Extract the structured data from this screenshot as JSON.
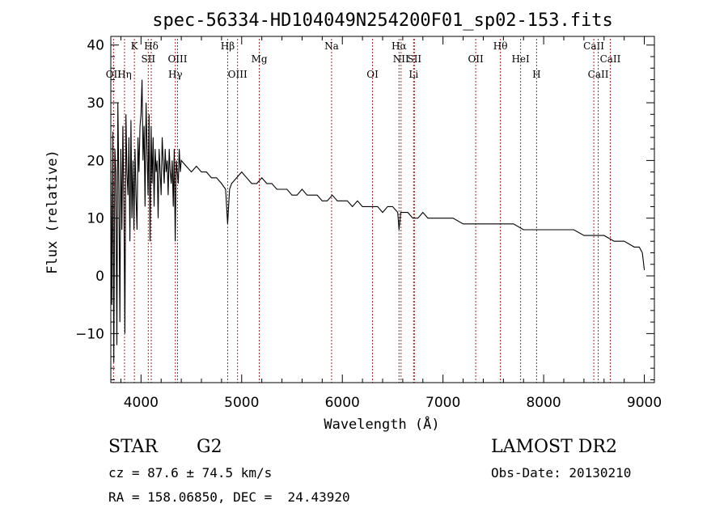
{
  "chart_data": {
    "type": "line",
    "title": "spec-56334-HD104049N254200F01_sp02-153.fits",
    "xlabel": "Wavelength (Å)",
    "ylabel": "Flux (relative)",
    "xlim": [
      3700,
      9100
    ],
    "ylim": [
      -18.5,
      41.5
    ],
    "xticks": [
      4000,
      5000,
      6000,
      7000,
      8000,
      9000
    ],
    "yticks": [
      -10,
      0,
      10,
      20,
      30,
      40
    ],
    "x_minor_step": 200,
    "y_minor_step": 2,
    "grid": false,
    "series": [
      {
        "x": [
          3700,
          3710,
          3720,
          3730,
          3740,
          3750,
          3760,
          3770,
          3780,
          3790,
          3800,
          3810,
          3820,
          3830,
          3840,
          3850,
          3860,
          3870,
          3880,
          3890,
          3900,
          3910,
          3920,
          3930,
          3940,
          3950,
          3960,
          3970,
          3980,
          3990,
          4000,
          4010,
          4020,
          4030,
          4040,
          4050,
          4060,
          4070,
          4080,
          4090,
          4100,
          4110,
          4120,
          4130,
          4140,
          4150,
          4160,
          4170,
          4180,
          4190,
          4200,
          4210,
          4220,
          4230,
          4240,
          4250,
          4260,
          4270,
          4280,
          4290,
          4300,
          4310,
          4320,
          4330,
          4340,
          4350,
          4360,
          4370,
          4380,
          4390,
          4400,
          4450,
          4500,
          4550,
          4600,
          4650,
          4700,
          4750,
          4800,
          4840,
          4860,
          4880,
          4900,
          4950,
          5000,
          5050,
          5100,
          5150,
          5200,
          5250,
          5300,
          5350,
          5400,
          5450,
          5500,
          5550,
          5600,
          5650,
          5700,
          5750,
          5800,
          5850,
          5900,
          5950,
          6000,
          6050,
          6100,
          6150,
          6200,
          6250,
          6300,
          6350,
          6400,
          6450,
          6500,
          6550,
          6563,
          6580,
          6600,
          6650,
          6700,
          6750,
          6800,
          6850,
          6900,
          6950,
          7000,
          7100,
          7200,
          7300,
          7400,
          7500,
          7600,
          7700,
          7800,
          7900,
          8000,
          8100,
          8200,
          8300,
          8400,
          8500,
          8600,
          8700,
          8800,
          8900,
          8950,
          8980,
          9000
        ],
        "y": [
          20,
          -5,
          25,
          -15,
          22,
          18,
          -12,
          30,
          15,
          -8,
          22,
          8,
          26,
          12,
          -10,
          28,
          18,
          14,
          24,
          6,
          27,
          10,
          20,
          8,
          22,
          14,
          8,
          24,
          18,
          26,
          28,
          34,
          20,
          26,
          12,
          30,
          22,
          14,
          28,
          6,
          26,
          16,
          24,
          12,
          22,
          18,
          20,
          10,
          22,
          18,
          14,
          24,
          20,
          16,
          22,
          18,
          20,
          14,
          22,
          18,
          16,
          20,
          12,
          22,
          6,
          20,
          18,
          16,
          22,
          18,
          20,
          19,
          18,
          19,
          18,
          18,
          17,
          17,
          16,
          15,
          9,
          15,
          16,
          17,
          18,
          17,
          16,
          16,
          17,
          16,
          16,
          15,
          15,
          15,
          14,
          14,
          15,
          14,
          14,
          14,
          13,
          13,
          14,
          13,
          13,
          13,
          12,
          13,
          12,
          12,
          12,
          12,
          11,
          12,
          12,
          11,
          8,
          11,
          11,
          11,
          10,
          10,
          11,
          10,
          10,
          10,
          10,
          10,
          9,
          9,
          9,
          9,
          9,
          9,
          8,
          8,
          8,
          8,
          8,
          8,
          7,
          7,
          7,
          6,
          6,
          5,
          5,
          4,
          1
        ]
      }
    ],
    "line_markers": [
      {
        "label": "OII",
        "x": 3727,
        "row": 2
      },
      {
        "label": "Hη",
        "x": 3836,
        "row": 2
      },
      {
        "label": "K",
        "x": 3934,
        "row": 0
      },
      {
        "label": "Hδ",
        "x": 4102,
        "row": 0
      },
      {
        "label": "SII",
        "x": 4072,
        "row": 1
      },
      {
        "label": "OIII",
        "x": 4363,
        "row": 1
      },
      {
        "label": "Hγ",
        "x": 4341,
        "row": 2
      },
      {
        "label": "Hβ",
        "x": 4861,
        "row": 0
      },
      {
        "label": "OIII",
        "x": 4959,
        "row": 2
      },
      {
        "label": "Mg",
        "x": 5175,
        "row": 1
      },
      {
        "label": "Na",
        "x": 5893,
        "row": 0
      },
      {
        "label": "OI",
        "x": 6300,
        "row": 2
      },
      {
        "label": "Hα",
        "x": 6563,
        "row": 0
      },
      {
        "label": "NII",
        "x": 6583,
        "row": 1
      },
      {
        "label": "SII",
        "x": 6716,
        "row": 1
      },
      {
        "label": "Li",
        "x": 6708,
        "row": 2
      },
      {
        "label": "OII",
        "x": 7325,
        "row": 1
      },
      {
        "label": "Hθ",
        "x": 7570,
        "row": 0
      },
      {
        "label": "HeI",
        "x": 7771,
        "row": 1
      },
      {
        "label": "H",
        "x": 7930,
        "row": 2
      },
      {
        "label": "CaII",
        "x": 8498,
        "row": 0
      },
      {
        "label": "CaII",
        "x": 8542,
        "row": 2
      },
      {
        "label": "CaII",
        "x": 8662,
        "row": 1
      }
    ]
  },
  "info": {
    "obj_class": "STAR",
    "subclass": "G2",
    "survey": "LAMOST DR2",
    "cz": "cz = 87.6 ± 74.5 km/s",
    "obs_date": "Obs-Date: 20130210",
    "coords": "RA = 158.06850, DEC =  24.43920"
  },
  "colors": {
    "spectrum": "#000000",
    "line_markers": "#b22222"
  }
}
